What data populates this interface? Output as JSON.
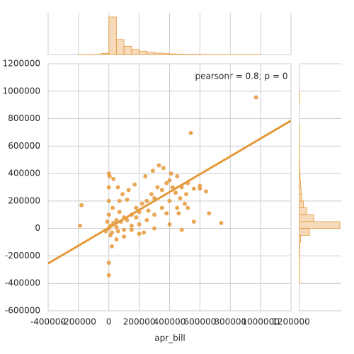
{
  "chart_data": {
    "type": "scatter",
    "x_label": "apr_bill",
    "annotation": "pearsonr = 0.8; p = 0",
    "color": "#e5993b",
    "grid": true,
    "xlim": [
      -400000,
      1200000
    ],
    "ylim": [
      -600000,
      1200000
    ],
    "xticks": [
      -400000,
      -200000,
      0,
      200000,
      400000,
      600000,
      800000,
      1000000,
      1200000
    ],
    "yticks": [
      -600000,
      -400000,
      -200000,
      0,
      200000,
      400000,
      600000,
      800000,
      1000000,
      1200000
    ],
    "x": [
      0,
      10000,
      20000,
      30000,
      50000,
      50000,
      80000,
      100000,
      120000,
      150000,
      180000,
      200000,
      220000,
      250000,
      280000,
      300000,
      320000,
      350000,
      380000,
      400000,
      420000,
      450000,
      480000,
      520000,
      560000,
      600000,
      640000,
      0,
      5000,
      30000,
      60000,
      90000,
      120000,
      10000,
      60000,
      100000,
      150000,
      200000,
      250000,
      300000,
      350000,
      400000,
      450000,
      500000,
      540000,
      970000,
      -180000,
      -190000,
      740000,
      0,
      0,
      20000,
      600000,
      480000,
      400000,
      300000,
      200000,
      150000,
      100000,
      50000,
      25000,
      70000,
      130000,
      170000,
      240000,
      290000,
      330000,
      360000,
      410000,
      440000,
      470000,
      510000,
      660000,
      560000,
      520000,
      380000,
      260000,
      180000,
      70000,
      0,
      0,
      0,
      -10000,
      -20000,
      230000,
      460000
    ],
    "y": [
      0,
      20000,
      -30000,
      40000,
      10000,
      60000,
      50000,
      80000,
      60000,
      100000,
      150000,
      120000,
      180000,
      200000,
      250000,
      220000,
      300000,
      280000,
      330000,
      350000,
      300000,
      380000,
      300000,
      330000,
      290000,
      310000,
      270000,
      400000,
      380000,
      360000,
      300000,
      250000,
      210000,
      -50000,
      -20000,
      -10000,
      20000,
      30000,
      60000,
      100000,
      150000,
      200000,
      150000,
      180000,
      695000,
      955000,
      170000,
      20000,
      40000,
      -340000,
      -250000,
      -130000,
      290000,
      -10000,
      30000,
      0,
      -40000,
      -10000,
      -60000,
      -80000,
      150000,
      200000,
      280000,
      320000,
      380000,
      420000,
      460000,
      440000,
      400000,
      260000,
      220000,
      250000,
      110000,
      50000,
      150000,
      110000,
      130000,
      80000,
      120000,
      100000,
      200000,
      300000,
      50000,
      -20000,
      -30000,
      110000
    ],
    "regression": {
      "slope": 0.65,
      "intercept": 5000
    },
    "marginal_x": {
      "bins": [
        -200000,
        -150000,
        -100000,
        -50000,
        0,
        50000,
        100000,
        150000,
        200000,
        250000,
        300000,
        350000,
        400000,
        450000,
        500000,
        550000,
        600000,
        650000,
        700000,
        750000,
        800000,
        850000,
        900000,
        950000,
        1000000
      ],
      "counts": [
        0.3,
        0.3,
        0.5,
        3,
        100,
        40,
        22,
        14,
        9,
        6,
        4,
        2.5,
        1.5,
        1,
        0.7,
        0.5,
        0.4,
        0.3,
        0.2,
        0.2,
        0.1,
        0.1,
        0.1,
        0.1
      ]
    },
    "marginal_y": {
      "bins": [
        -400000,
        -350000,
        -300000,
        -250000,
        -200000,
        -150000,
        -100000,
        -50000,
        0,
        50000,
        100000,
        150000,
        200000,
        250000,
        300000,
        350000,
        400000,
        450000,
        500000,
        550000,
        600000,
        650000,
        700000,
        750000,
        800000,
        850000,
        900000,
        950000,
        1000000
      ],
      "counts": [
        0.2,
        0.3,
        0.3,
        0.4,
        0.5,
        1,
        3,
        25,
        100,
        35,
        18,
        10,
        6,
        4,
        2.5,
        1.5,
        0.8,
        0.5,
        0.3,
        0.2,
        0.2,
        0.1,
        0.1,
        0,
        0,
        0,
        0.1,
        0.1
      ]
    }
  }
}
